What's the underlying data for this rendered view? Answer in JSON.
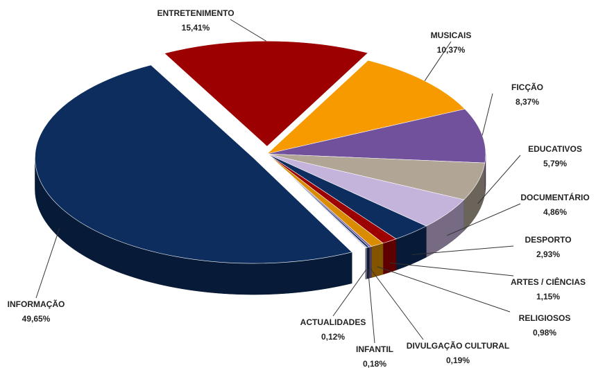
{
  "chart_data": {
    "type": "pie",
    "categories": [
      "ENTRETENIMENTO",
      "MUSICAIS",
      "FICÇÃO",
      "EDUCATIVOS",
      "DOCUMENTÁRIO",
      "DESPORTO",
      "ARTES / CIÊNCIAS",
      "RELIGIOSOS",
      "DIVULGAÇÃO CULTURAL",
      "INFANTIL",
      "ACTUALIDADES",
      "INFORMAÇÃO"
    ],
    "values": [
      15.41,
      10.37,
      8.37,
      5.79,
      4.86,
      2.93,
      1.15,
      0.98,
      0.19,
      0.18,
      0.12,
      49.65
    ],
    "value_labels": [
      "15,41%",
      "10,37%",
      "8,37%",
      "5,79%",
      "4,86%",
      "2,93%",
      "1,15%",
      "0,98%",
      "0,19%",
      "0,18%",
      "0,12%",
      "49,65%"
    ],
    "colors": [
      "#9c0000",
      "#f79a00",
      "#71519b",
      "#b1a696",
      "#c4b3da",
      "#0c2d5e",
      "#9c0000",
      "#d98c00",
      "#7a62a6",
      "#0c2d5e",
      "#c4b3da",
      "#0c2d5e"
    ]
  }
}
